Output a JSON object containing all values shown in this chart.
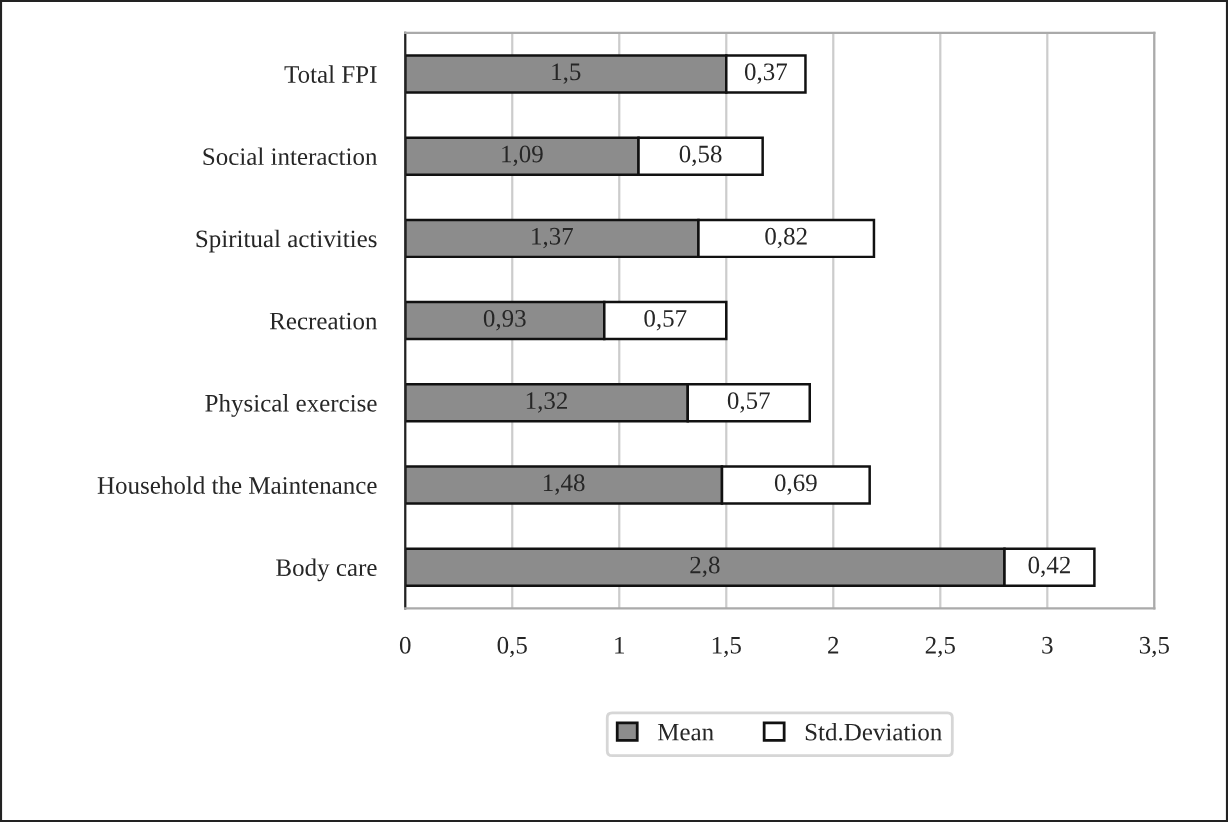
{
  "chart_data": {
    "type": "bar",
    "orientation": "horizontal",
    "stacked": true,
    "categories": [
      "Total FPI",
      "Social interaction",
      "Spiritual activities",
      "Recreation",
      "Physical exercise",
      "Household the Maintenance",
      "Body care"
    ],
    "series": [
      {
        "name": "Mean",
        "color": "#8c8c8c",
        "values": [
          1.5,
          1.09,
          1.37,
          0.93,
          1.32,
          1.48,
          2.8
        ],
        "value_labels": [
          "1,5",
          "1,09",
          "1,37",
          "0,93",
          "1,32",
          "1,48",
          "2,8"
        ]
      },
      {
        "name": "Std.Deviation",
        "color": "#ffffff",
        "values": [
          0.37,
          0.58,
          0.82,
          0.57,
          0.57,
          0.69,
          0.42
        ],
        "value_labels": [
          "0,37",
          "0,58",
          "0,82",
          "0,57",
          "0,57",
          "0,69",
          "0,42"
        ]
      }
    ],
    "xlim": [
      0,
      3.5
    ],
    "xticks": [
      0,
      {
        "value": 0.5,
        "label": "0,5"
      },
      1,
      {
        "value": 1.5,
        "label": "1,5"
      },
      2,
      {
        "value": 2.5,
        "label": "2,5"
      },
      3,
      {
        "value": 3.5,
        "label": "3,5"
      }
    ],
    "grid": "x",
    "legend": "bottom"
  }
}
